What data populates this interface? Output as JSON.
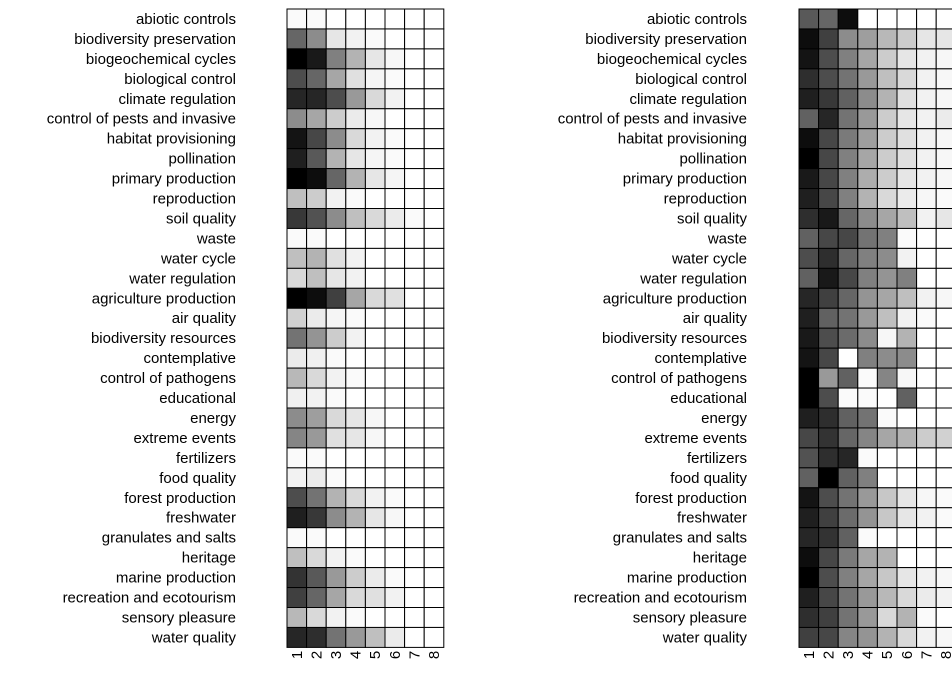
{
  "chart_data": [
    {
      "type": "heatmap",
      "legend": "none",
      "grid": true,
      "colormap": [
        "#000000",
        "#ffffff"
      ],
      "value_scale": "0 = white, 1 = black",
      "rows": [
        "abiotic controls",
        "biodiversity preservation",
        "biogeochemical cycles",
        "biological control",
        "climate regulation",
        "control of pests and invasive",
        "habitat provisioning",
        "pollination",
        "primary production",
        "reproduction",
        "soil quality",
        "waste",
        "water cycle",
        "water regulation",
        "agriculture production",
        "air quality",
        "biodiversity resources",
        "contemplative",
        "control of pathogens",
        "educational",
        "energy",
        "extreme events",
        "fertilizers",
        "food quality",
        "forest production",
        "freshwater",
        "granulates and salts",
        "heritage",
        "marine production",
        "recreation and ecotourism",
        "sensory pleasure",
        "water quality"
      ],
      "columns": [
        "1",
        "2",
        "3",
        "4",
        "5",
        "6",
        "7",
        "8"
      ],
      "values": [
        [
          0.02,
          0.02,
          0,
          0,
          0,
          0,
          0,
          0
        ],
        [
          0.6,
          0.45,
          0.1,
          0.05,
          0.02,
          0,
          0,
          0
        ],
        [
          1.0,
          0.9,
          0.5,
          0.3,
          0.1,
          0.03,
          0,
          0
        ],
        [
          0.7,
          0.6,
          0.35,
          0.12,
          0.04,
          0.02,
          0,
          0
        ],
        [
          0.85,
          0.85,
          0.7,
          0.4,
          0.15,
          0.05,
          0,
          0
        ],
        [
          0.45,
          0.35,
          0.2,
          0.08,
          0.03,
          0,
          0,
          0
        ],
        [
          0.92,
          0.72,
          0.45,
          0.15,
          0.05,
          0.02,
          0,
          0
        ],
        [
          0.88,
          0.65,
          0.3,
          0.1,
          0.04,
          0.02,
          0,
          0
        ],
        [
          1.0,
          0.95,
          0.6,
          0.3,
          0.1,
          0.04,
          0,
          0
        ],
        [
          0.25,
          0.2,
          0.05,
          0.02,
          0,
          0,
          0,
          0
        ],
        [
          0.78,
          0.68,
          0.45,
          0.25,
          0.15,
          0.08,
          0.02,
          0
        ],
        [
          0.02,
          0.02,
          0,
          0,
          0,
          0,
          0,
          0
        ],
        [
          0.25,
          0.3,
          0.12,
          0.05,
          0,
          0,
          0,
          0
        ],
        [
          0.15,
          0.25,
          0.1,
          0.05,
          0,
          0,
          0,
          0
        ],
        [
          1.0,
          0.95,
          0.75,
          0.35,
          0.15,
          0.12,
          0,
          0
        ],
        [
          0.18,
          0.08,
          0.04,
          0.02,
          0,
          0,
          0,
          0
        ],
        [
          0.55,
          0.42,
          0.2,
          0.05,
          0,
          0,
          0,
          0
        ],
        [
          0.08,
          0.06,
          0.02,
          0,
          0,
          0,
          0,
          0
        ],
        [
          0.28,
          0.15,
          0.05,
          0.02,
          0,
          0,
          0,
          0
        ],
        [
          0.06,
          0.05,
          0.02,
          0,
          0,
          0,
          0,
          0
        ],
        [
          0.45,
          0.38,
          0.15,
          0.1,
          0.03,
          0,
          0,
          0
        ],
        [
          0.48,
          0.4,
          0.12,
          0.1,
          0.03,
          0,
          0,
          0
        ],
        [
          0.02,
          0.02,
          0,
          0,
          0,
          0,
          0,
          0
        ],
        [
          0.05,
          0.08,
          0.02,
          0,
          0,
          0,
          0,
          0
        ],
        [
          0.7,
          0.55,
          0.3,
          0.15,
          0.05,
          0.02,
          0,
          0
        ],
        [
          0.88,
          0.78,
          0.45,
          0.3,
          0.1,
          0.03,
          0,
          0
        ],
        [
          0.02,
          0.02,
          0,
          0,
          0,
          0,
          0,
          0
        ],
        [
          0.25,
          0.15,
          0.05,
          0.02,
          0,
          0,
          0,
          0
        ],
        [
          0.8,
          0.65,
          0.4,
          0.2,
          0.08,
          0.02,
          0,
          0
        ],
        [
          0.75,
          0.6,
          0.35,
          0.15,
          0.12,
          0.05,
          0,
          0
        ],
        [
          0.28,
          0.15,
          0.05,
          0.02,
          0,
          0,
          0,
          0
        ],
        [
          0.85,
          0.82,
          0.55,
          0.4,
          0.25,
          0.08,
          0,
          0
        ]
      ]
    },
    {
      "type": "heatmap",
      "legend": "none",
      "grid": true,
      "colormap": [
        "#000000",
        "#ffffff"
      ],
      "value_scale": "0 = white, 1 = black",
      "rows": [
        "abiotic controls",
        "biodiversity preservation",
        "biogeochemical cycles",
        "biological control",
        "climate regulation",
        "control of pests and invasive",
        "habitat provisioning",
        "pollination",
        "primary production",
        "reproduction",
        "soil quality",
        "waste",
        "water cycle",
        "water regulation",
        "agriculture production",
        "air quality",
        "biodiversity resources",
        "contemplative",
        "control of pathogens",
        "educational",
        "energy",
        "extreme events",
        "fertilizers",
        "food quality",
        "forest production",
        "freshwater",
        "granulates and salts",
        "heritage",
        "marine production",
        "recreation and ecotourism",
        "sensory pleasure",
        "water quality"
      ],
      "columns": [
        "1",
        "2",
        "3",
        "4",
        "5",
        "6",
        "7",
        "8"
      ],
      "values": [
        [
          0.65,
          0.6,
          0.95,
          0,
          0,
          0,
          0,
          0
        ],
        [
          0.95,
          0.75,
          0.45,
          0.38,
          0.28,
          0.2,
          0.1,
          0.1
        ],
        [
          0.92,
          0.7,
          0.5,
          0.35,
          0.2,
          0.1,
          0.05,
          0.03
        ],
        [
          0.82,
          0.7,
          0.55,
          0.4,
          0.25,
          0.15,
          0.05,
          0.03
        ],
        [
          0.88,
          0.78,
          0.62,
          0.45,
          0.3,
          0.12,
          0.05,
          0.03
        ],
        [
          0.62,
          0.85,
          0.55,
          0.4,
          0.2,
          0.1,
          0.05,
          0.08
        ],
        [
          0.95,
          0.72,
          0.52,
          0.38,
          0.2,
          0.12,
          0.05,
          0.03
        ],
        [
          1.0,
          0.72,
          0.5,
          0.35,
          0.2,
          0.12,
          0.05,
          0.03
        ],
        [
          0.9,
          0.72,
          0.5,
          0.32,
          0.2,
          0.1,
          0.05,
          0.03
        ],
        [
          0.88,
          0.72,
          0.5,
          0.3,
          0.15,
          0.08,
          0.03,
          0.02
        ],
        [
          0.82,
          0.9,
          0.6,
          0.45,
          0.35,
          0.25,
          0.05,
          0.1
        ],
        [
          0.62,
          0.72,
          0.72,
          0.55,
          0.5,
          0.02,
          0,
          0
        ],
        [
          0.7,
          0.82,
          0.6,
          0.5,
          0.45,
          0.05,
          0,
          0
        ],
        [
          0.62,
          0.9,
          0.72,
          0.5,
          0.42,
          0.5,
          0,
          0
        ],
        [
          0.85,
          0.75,
          0.6,
          0.42,
          0.35,
          0.25,
          0.05,
          0.03
        ],
        [
          0.88,
          0.62,
          0.55,
          0.4,
          0.25,
          0.05,
          0.02,
          0
        ],
        [
          0.9,
          0.7,
          0.58,
          0.45,
          0.03,
          0.3,
          0,
          0
        ],
        [
          0.92,
          0.72,
          0,
          0.5,
          0.45,
          0.45,
          0,
          0
        ],
        [
          1.0,
          0.4,
          0.62,
          0.02,
          0.48,
          0.03,
          0,
          0
        ],
        [
          1.0,
          0.7,
          0.02,
          0.02,
          0,
          0.62,
          0,
          0
        ],
        [
          0.88,
          0.82,
          0.62,
          0.55,
          0.02,
          0,
          0,
          0
        ],
        [
          0.72,
          0.8,
          0.6,
          0.48,
          0.35,
          0.3,
          0.2,
          0.18
        ],
        [
          0.68,
          0.82,
          0.85,
          0.02,
          0,
          0,
          0,
          0
        ],
        [
          0.62,
          1.0,
          0.62,
          0.5,
          0,
          0,
          0,
          0
        ],
        [
          0.92,
          0.7,
          0.55,
          0.4,
          0.22,
          0.1,
          0.03,
          0.02
        ],
        [
          0.88,
          0.75,
          0.58,
          0.42,
          0.22,
          0.1,
          0.05,
          0.02
        ],
        [
          0.85,
          0.8,
          0.62,
          0.02,
          0,
          0,
          0,
          0
        ],
        [
          0.95,
          0.72,
          0.52,
          0.35,
          0.3,
          0,
          0,
          0
        ],
        [
          1.0,
          0.7,
          0.5,
          0.35,
          0.22,
          0.1,
          0.05,
          0.03
        ],
        [
          0.88,
          0.72,
          0.55,
          0.4,
          0.28,
          0.15,
          0.08,
          0.05
        ],
        [
          0.82,
          0.75,
          0.55,
          0.4,
          0.15,
          0.3,
          0.02,
          0
        ],
        [
          0.75,
          0.72,
          0.48,
          0.42,
          0.3,
          0.15,
          0.05,
          0.03
        ]
      ]
    }
  ]
}
